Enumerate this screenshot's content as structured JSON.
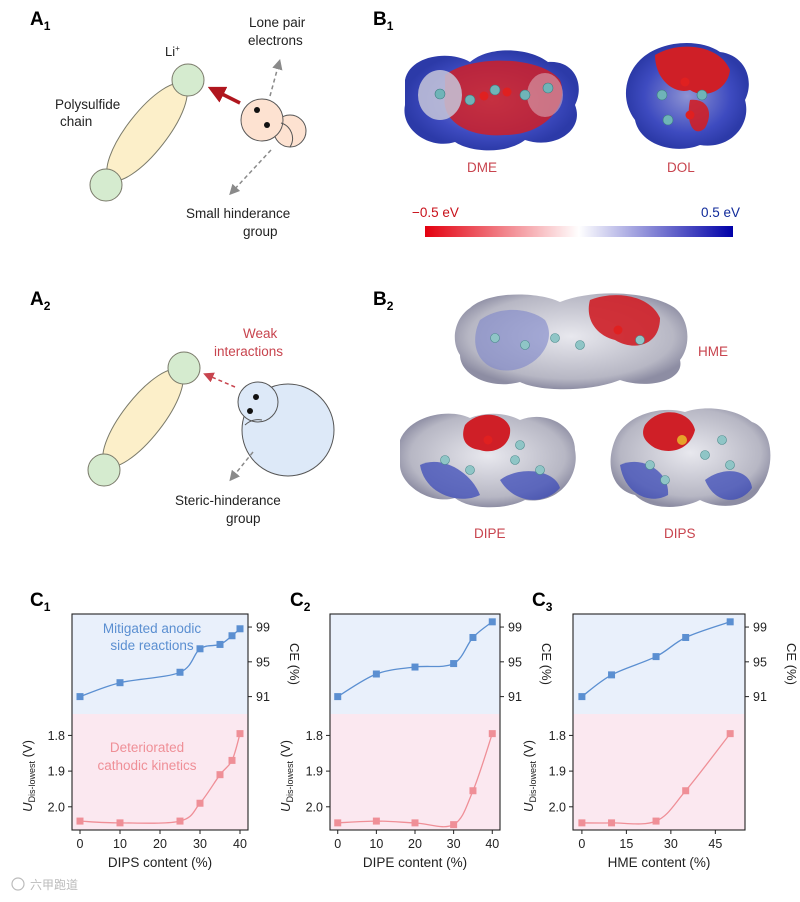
{
  "panel_labels": {
    "a1": "A",
    "a1_sub": "1",
    "a2": "A",
    "a2_sub": "2",
    "b1": "B",
    "b1_sub": "1",
    "b2": "B",
    "b2_sub": "2",
    "c1": "C",
    "c1_sub": "1",
    "c2": "C",
    "c2_sub": "2",
    "c3": "C",
    "c3_sub": "3"
  },
  "schematic_a1": {
    "li": "Li",
    "li_sup": "+",
    "chain_line1": "Polysulfide",
    "chain_line2": "chain",
    "lone_pair_line1": "Lone pair",
    "lone_pair_line2": "electrons",
    "small_group_line1": "Small hinderance",
    "small_group_line2": "group"
  },
  "schematic_a2": {
    "weak_line1": "Weak",
    "weak_line2": "interactions",
    "steric_line1": "Steric-hinderance",
    "steric_line2": "group"
  },
  "esp_b1": {
    "mol1": "DME",
    "mol2": "DOL",
    "scale_min": "−0.5 eV",
    "scale_max": "0.5 eV"
  },
  "esp_b2": {
    "mol1": "HME",
    "mol2": "DIPE",
    "mol3": "DIPS"
  },
  "colors": {
    "ce_series": "#5b8fd1",
    "u_series": "#ef8f97",
    "ce_bg": "#e9f0fb",
    "u_bg": "#fbe8f0",
    "label_red": "#c8444e"
  },
  "chart_data": [
    {
      "type": "line",
      "panel": "C1",
      "xlabel": "DIPS content (%)",
      "xticks": [
        "0",
        "10",
        "20",
        "30",
        "40"
      ],
      "xlim": [
        -2,
        42
      ],
      "ce": {
        "ylabel": "CE (%)",
        "yticks": [
          "99",
          "95",
          "91"
        ],
        "ylim": [
          89,
          100.5
        ],
        "x": [
          0,
          10,
          25,
          30,
          35,
          38,
          40
        ],
        "y": [
          91.0,
          92.6,
          93.8,
          96.5,
          97.0,
          98.0,
          98.8
        ]
      },
      "u": {
        "ylabel": "U",
        "ylabel_sub": "Dis-lowest",
        "ylabel_unit": "(V)",
        "yticks": [
          "1.8",
          "1.9",
          "2.0"
        ],
        "ylim_top": 1.74,
        "ylim_bottom": 2.065,
        "inverted": true,
        "x": [
          0,
          10,
          25,
          30,
          35,
          38,
          40
        ],
        "y": [
          2.04,
          2.045,
          2.04,
          1.99,
          1.91,
          1.87,
          1.795
        ]
      },
      "annotation_top_line1": "Mitigated anodic",
      "annotation_top_line2": "side reactions",
      "annotation_bottom_line1": "Deteriorated",
      "annotation_bottom_line2": "cathodic kinetics"
    },
    {
      "type": "line",
      "panel": "C2",
      "xlabel": "DIPE content (%)",
      "xticks": [
        "0",
        "10",
        "20",
        "30",
        "40"
      ],
      "xlim": [
        -2,
        42
      ],
      "ce": {
        "ylabel": "CE (%)",
        "yticks": [
          "99",
          "95",
          "91"
        ],
        "ylim": [
          89,
          100.5
        ],
        "x": [
          0,
          10,
          20,
          30,
          35,
          40
        ],
        "y": [
          91.0,
          93.6,
          94.4,
          94.8,
          97.8,
          99.6
        ]
      },
      "u": {
        "ylabel": "U",
        "ylabel_sub": "Dis-lowest",
        "ylabel_unit": "(V)",
        "yticks": [
          "1.8",
          "1.9",
          "2.0"
        ],
        "ylim_top": 1.74,
        "ylim_bottom": 2.065,
        "inverted": true,
        "x": [
          0,
          10,
          20,
          30,
          35,
          40
        ],
        "y": [
          2.045,
          2.04,
          2.045,
          2.05,
          1.955,
          1.795
        ]
      }
    },
    {
      "type": "line",
      "panel": "C3",
      "xlabel": "HME content (%)",
      "xticks": [
        "0",
        "15",
        "30",
        "45"
      ],
      "xlim": [
        -3,
        55
      ],
      "ce": {
        "ylabel": "CE (%)",
        "yticks": [
          "99",
          "95",
          "91"
        ],
        "ylim": [
          89,
          100.5
        ],
        "x": [
          0,
          10,
          25,
          35,
          50
        ],
        "y": [
          91.0,
          93.5,
          95.6,
          97.8,
          99.6
        ]
      },
      "u": {
        "ylabel": "U",
        "ylabel_sub": "Dis-lowest",
        "ylabel_unit": "(V)",
        "yticks": [
          "1.8",
          "1.9",
          "2.0"
        ],
        "ylim_top": 1.74,
        "ylim_bottom": 2.065,
        "inverted": true,
        "x": [
          0,
          10,
          25,
          35,
          50
        ],
        "y": [
          2.045,
          2.045,
          2.04,
          1.955,
          1.795
        ]
      }
    }
  ],
  "watermark": "六甲跑道"
}
